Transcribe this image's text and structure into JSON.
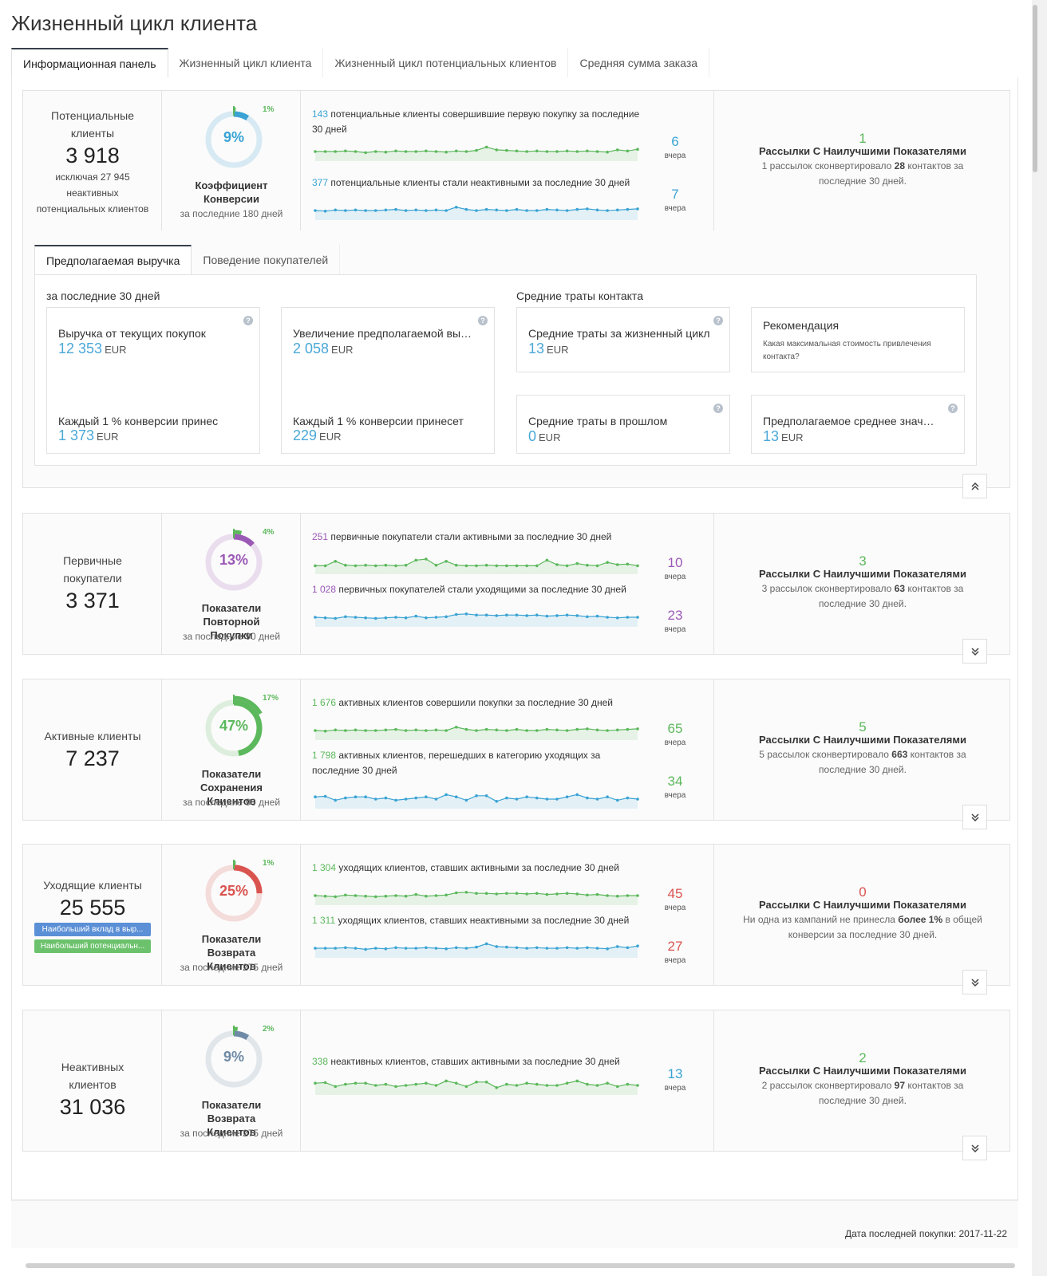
{
  "title": "Жизненный цикл клиента",
  "tabs": [
    "Информационная панель",
    "Жизненный цикл клиента",
    "Жизненный цикл потенциальных клиентов",
    "Средняя сумма заказа"
  ],
  "yesterday_label": "вчера",
  "best_title": "Рассылки С Наилучшими Показателями",
  "segments": [
    {
      "title": "Потенциальные клиенты",
      "count": "3 918",
      "sub": "исключая 27 945 неактивных потенциальных клиентов",
      "color": "#3aa3d4",
      "donut_percent": 9,
      "donut_label": "9%",
      "small_percent": 1,
      "small_label": "1%",
      "metric_name": "Коэффициент Конверсии",
      "metric_period": "за последние 180 дней",
      "trends": [
        {
          "num": "143",
          "text": "потенциальные клиенты совершившие первую покупку за последние 30 дней",
          "num_color": "#3aa3d4",
          "yesterday": "6",
          "yest_color": "#3aa3d4",
          "line_color": "#5cb85c"
        },
        {
          "num": "377",
          "text": "потенциальные клиенты стали неактивными за последние 30 дней",
          "num_color": "#3aa3d4",
          "yesterday": "7",
          "yest_color": "#3aa3d4",
          "line_color": "#3aa3d4"
        }
      ],
      "best_num": "1",
      "best_color": "#5cb85c",
      "best_desc_pre": "1 рассылок сконвертировало ",
      "best_desc_bold": "28",
      "best_desc_post": " контактов за последние 30 дней."
    },
    {
      "title": "Первичные покупатели",
      "count": "3 371",
      "color": "#9b59b6",
      "donut_percent": 13,
      "donut_label": "13%",
      "small_percent": 4,
      "small_label": "4%",
      "metric_name": "Показатели Повторной Покупки",
      "metric_period": "за последние 90 дней",
      "trends": [
        {
          "num": "251",
          "text": "первичные покупатели стали активными за последние 30 дней",
          "num_color": "#9b59b6",
          "yesterday": "10",
          "yest_color": "#9b59b6",
          "line_color": "#5cb85c"
        },
        {
          "num": "1 028",
          "text": "первичных покупателей стали уходящими за последние 30 дней",
          "num_color": "#9b59b6",
          "yesterday": "23",
          "yest_color": "#9b59b6",
          "line_color": "#3aa3d4"
        }
      ],
      "best_num": "3",
      "best_color": "#5cb85c",
      "best_desc_pre": "3 рассылок сконвертировало ",
      "best_desc_bold": "63",
      "best_desc_post": " контактов за последние 30 дней."
    },
    {
      "title": "Активные клиенты",
      "count": "7 237",
      "color": "#5cb85c",
      "donut_percent": 47,
      "donut_label": "47%",
      "small_percent": 17,
      "small_label": "17%",
      "metric_name": "Показатели Сохранения Клиентов",
      "metric_period": "за последние 90 дней",
      "trends": [
        {
          "num": "1 676",
          "text": "активных клиентов совершили покупки за последние 30 дней",
          "num_color": "#5cb85c",
          "yesterday": "65",
          "yest_color": "#5cb85c",
          "line_color": "#5cb85c"
        },
        {
          "num": "1 798",
          "text": "активных клиентов, перешедших в категорию уходящих за последние 30 дней",
          "num_color": "#5cb85c",
          "yesterday": "34",
          "yest_color": "#5cb85c",
          "line_color": "#3aa3d4"
        }
      ],
      "best_num": "5",
      "best_color": "#5cb85c",
      "best_desc_pre": "5 рассылок сконвертировало ",
      "best_desc_bold": "663",
      "best_desc_post": " контактов за последние 30 дней."
    },
    {
      "title": "Уходящие клиенты",
      "count": "25 555",
      "color": "#d9534f",
      "badges": [
        {
          "label": "Наибольший вклад в выр...",
          "color": "#5b8fd6"
        },
        {
          "label": "Наибольший потенциальн...",
          "color": "#6cc26c"
        }
      ],
      "donut_percent": 25,
      "donut_label": "25%",
      "small_percent": 1,
      "small_label": "1%",
      "metric_name": "Показатели Возврата Клиентов",
      "metric_period": "за последние 275 дней",
      "trends": [
        {
          "num": "1 304",
          "text": "уходящих клиентов, ставших активными за последние 30 дней",
          "num_color": "#5cb85c",
          "yesterday": "45",
          "yest_color": "#d9534f",
          "line_color": "#5cb85c"
        },
        {
          "num": "1 311",
          "text": "уходящих клиентов, ставших неактивными за последние 30 дней",
          "num_color": "#5cb85c",
          "yesterday": "27",
          "yest_color": "#d9534f",
          "line_color": "#3aa3d4"
        }
      ],
      "best_num": "0",
      "best_color": "#d9534f",
      "best_desc_pre": "Ни одна из кампаний не принесла ",
      "best_desc_bold": "более 1%",
      "best_desc_post": " в общей конверсии за последние 30 дней."
    },
    {
      "title": "Неактивных клиентов",
      "count": "31 036",
      "color": "#6f8aa6",
      "donut_percent": 9,
      "donut_label": "9%",
      "small_percent": 2,
      "small_label": "2%",
      "metric_name": "Показатели Возврата Клиентов",
      "metric_period": "за последние 275 дней",
      "trends": [
        {
          "num": "338",
          "text": "неактивных клиентов, ставших активными за последние 30 дней",
          "num_color": "#5cb85c",
          "yesterday": "13",
          "yest_color": "#3aa3d4",
          "line_color": "#5cb85c"
        }
      ],
      "best_num": "2",
      "best_color": "#5cb85c",
      "best_desc_pre": "2 рассылок сконвертировало ",
      "best_desc_bold": "97",
      "best_desc_post": " контактов за последние 30 дней."
    }
  ],
  "subtabs": [
    "Предполагаемая выручка",
    "Поведение покупателей"
  ],
  "revenue": {
    "left_label": "за последние 30 дней",
    "right_label": "Средние траты контакта",
    "current_title": "Выручка от текущих покупок",
    "current_value": "12 353",
    "increase_title": "Увеличение предполагаемой выр...",
    "increase_value": "2 058",
    "each_brought_title": "Каждый 1 % конверсии принес",
    "each_brought_value": "1 373",
    "each_will_title": "Каждый 1 % конверсии принесет",
    "each_will_value": "229",
    "lifetime_title": "Средние траты за жизненный цикл",
    "lifetime_value": "13",
    "past_title": "Средние траты в прошлом",
    "past_value": "0",
    "reco_title": "Рекомендация",
    "reco_text": "Какая максимальная стоимость привлечения контакта?",
    "predicted_title": "Предполагаемое среднее значен...",
    "predicted_value": "13",
    "currency": "EUR"
  },
  "footer": "Дата последней покупки: 2017-11-22"
}
